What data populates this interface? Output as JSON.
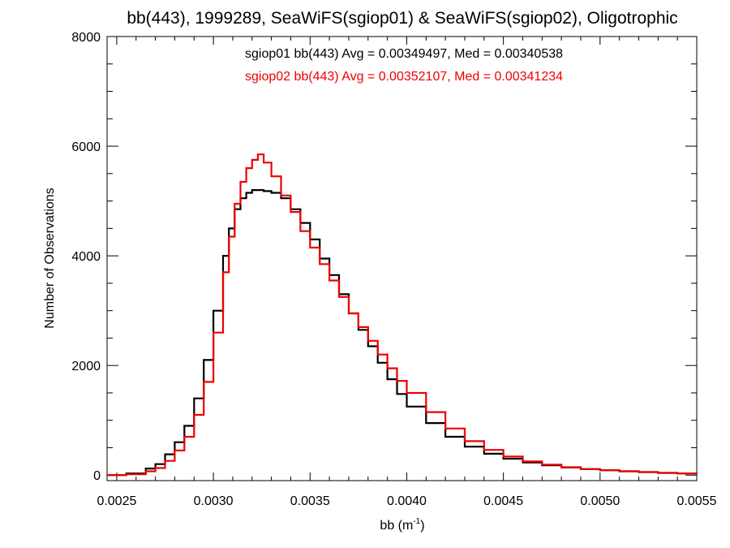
{
  "chart_data": {
    "type": "line",
    "title": "bb(443), 1999289, SeaWiFS(sgiop01) & SeaWiFS(sgiop02), Oligotrophic",
    "xlabel_main": "bb (m",
    "xlabel_sup": "-1",
    "xlabel_close": ")",
    "ylabel": "Number of Observations",
    "xlim": [
      0.00245,
      0.0055
    ],
    "ylim": [
      -100,
      8000
    ],
    "x_ticks": [
      0.0025,
      0.003,
      0.0035,
      0.004,
      0.0045,
      0.005,
      0.0055
    ],
    "x_tick_labels": [
      "0.0025",
      "0.0030",
      "0.0035",
      "0.0040",
      "0.0045",
      "0.0050",
      "0.0055"
    ],
    "y_ticks": [
      0,
      2000,
      4000,
      6000,
      8000
    ],
    "y_tick_labels": [
      "0",
      "2000",
      "4000",
      "6000",
      "8000"
    ],
    "grid": false,
    "annotations": [
      {
        "text": "sgiop01 bb(443) Avg = 0.00349497, Med = 0.00340538",
        "color": "#000000"
      },
      {
        "text": "sgiop02 bb(443) Avg = 0.00352107, Med = 0.00341234",
        "color": "#ee0000"
      }
    ],
    "series": [
      {
        "color": "#000000",
        "x": [
          0.00245,
          0.00255,
          0.00265,
          0.0027,
          0.00275,
          0.0028,
          0.00285,
          0.0029,
          0.00295,
          0.003,
          0.00305,
          0.00308,
          0.00311,
          0.00314,
          0.00317,
          0.0032,
          0.00323,
          0.00326,
          0.0033,
          0.00335,
          0.0034,
          0.00345,
          0.0035,
          0.00355,
          0.0036,
          0.00365,
          0.0037,
          0.00375,
          0.0038,
          0.00385,
          0.0039,
          0.00395,
          0.004,
          0.0041,
          0.0042,
          0.0043,
          0.0044,
          0.0045,
          0.0046,
          0.0047,
          0.0048,
          0.0049,
          0.005,
          0.0051,
          0.0052,
          0.0053,
          0.0054,
          0.0055
        ],
        "y": [
          0,
          30,
          120,
          200,
          380,
          600,
          900,
          1400,
          2100,
          3000,
          4000,
          4500,
          4850,
          5050,
          5150,
          5200,
          5200,
          5180,
          5150,
          5050,
          4850,
          4600,
          4300,
          3950,
          3650,
          3300,
          2950,
          2650,
          2350,
          2050,
          1750,
          1480,
          1250,
          950,
          700,
          520,
          390,
          300,
          230,
          180,
          140,
          110,
          90,
          70,
          55,
          40,
          30,
          25
        ]
      },
      {
        "color": "#ee0000",
        "x": [
          0.00245,
          0.00255,
          0.00265,
          0.0027,
          0.00275,
          0.0028,
          0.00285,
          0.0029,
          0.00295,
          0.003,
          0.00305,
          0.00308,
          0.00311,
          0.00314,
          0.00317,
          0.0032,
          0.00323,
          0.00326,
          0.0033,
          0.00335,
          0.0034,
          0.00345,
          0.0035,
          0.00355,
          0.0036,
          0.00365,
          0.0037,
          0.00375,
          0.0038,
          0.00385,
          0.0039,
          0.00395,
          0.004,
          0.0041,
          0.0042,
          0.0043,
          0.0044,
          0.0045,
          0.0046,
          0.0047,
          0.0048,
          0.0049,
          0.005,
          0.0051,
          0.0052,
          0.0053,
          0.0054,
          0.0055
        ],
        "y": [
          0,
          15,
          70,
          130,
          260,
          450,
          700,
          1100,
          1700,
          2600,
          3700,
          4350,
          4950,
          5350,
          5600,
          5750,
          5850,
          5700,
          5450,
          5100,
          4800,
          4450,
          4150,
          3850,
          3550,
          3250,
          2950,
          2700,
          2450,
          2200,
          1950,
          1720,
          1500,
          1150,
          850,
          620,
          460,
          340,
          250,
          190,
          145,
          110,
          90,
          70,
          55,
          40,
          30,
          25
        ]
      }
    ]
  }
}
